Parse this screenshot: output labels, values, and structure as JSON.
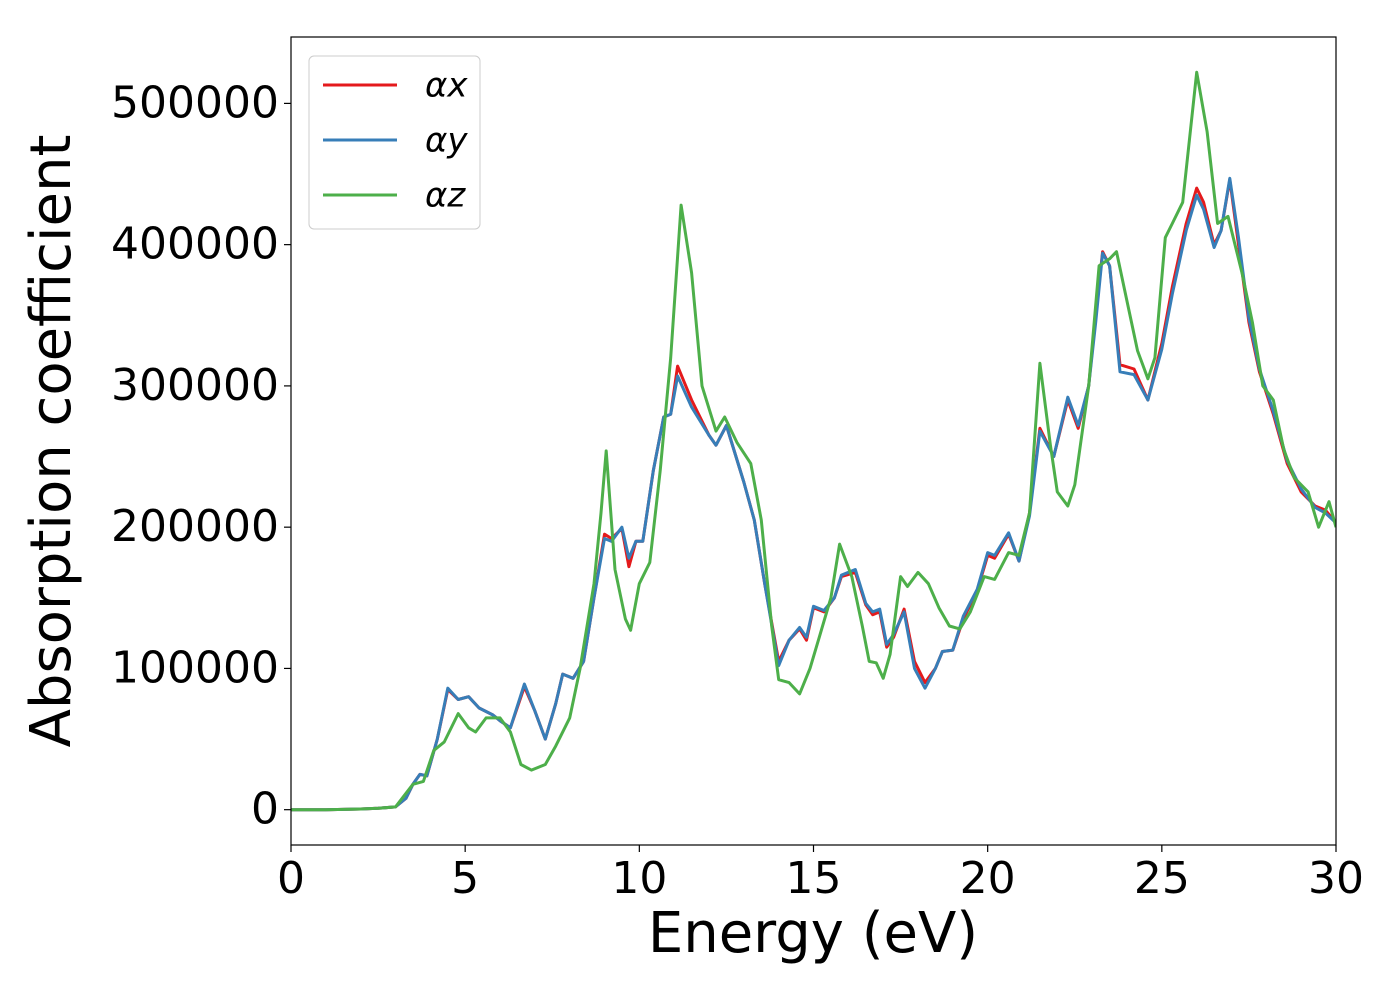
{
  "chart_data": {
    "type": "line",
    "xlabel": "Energy (eV)",
    "ylabel": "Absorption coefficient",
    "xlim": [
      0,
      30
    ],
    "xticks": [
      0,
      5,
      10,
      15,
      20,
      25,
      30
    ],
    "ylim": [
      -25000,
      547000
    ],
    "yticks": [
      0,
      100000,
      200000,
      300000,
      400000,
      500000
    ],
    "legend": "upper left",
    "series": [
      {
        "name": "αx",
        "color": "#e41a1c",
        "x": [
          0,
          1,
          2,
          2.5,
          3,
          3.3,
          3.5,
          3.7,
          3.9,
          4.2,
          4.5,
          4.8,
          5.1,
          5.4,
          5.8,
          6.0,
          6.3,
          6.7,
          7.0,
          7.3,
          7.6,
          7.8,
          8.1,
          8.4,
          8.7,
          9.0,
          9.2,
          9.5,
          9.7,
          9.9,
          10.1,
          10.4,
          10.7,
          10.9,
          11.1,
          11.5,
          12.0,
          12.2,
          12.5,
          13.0,
          13.3,
          13.6,
          14.0,
          14.3,
          14.6,
          14.8,
          15.0,
          15.3,
          15.6,
          15.8,
          16.2,
          16.5,
          16.7,
          16.9,
          17.1,
          17.3,
          17.6,
          17.9,
          18.2,
          18.5,
          18.7,
          19.0,
          19.3,
          19.7,
          20.0,
          20.2,
          20.6,
          20.9,
          21.2,
          21.5,
          21.9,
          22.3,
          22.6,
          22.9,
          23.1,
          23.3,
          23.5,
          23.8,
          24.2,
          24.6,
          25.0,
          25.3,
          25.7,
          26.0,
          26.2,
          26.5,
          26.7,
          26.95,
          27.2,
          27.5,
          27.8,
          28.2,
          28.6,
          29.0,
          29.4,
          29.7,
          30.0
        ],
        "values": [
          0,
          0,
          500,
          1000,
          2000,
          8000,
          18000,
          25000,
          24000,
          50000,
          85000,
          78000,
          80000,
          72000,
          67000,
          63000,
          58000,
          87000,
          70000,
          50000,
          75000,
          96000,
          93000,
          105000,
          150000,
          195000,
          192000,
          199000,
          172000,
          190000,
          190000,
          240000,
          278000,
          280000,
          314000,
          290000,
          265000,
          258000,
          272000,
          232000,
          205000,
          160000,
          105000,
          120000,
          128000,
          120000,
          143000,
          140000,
          150000,
          165000,
          168000,
          145000,
          138000,
          140000,
          115000,
          122000,
          142000,
          105000,
          90000,
          100000,
          112000,
          113000,
          135000,
          155000,
          180000,
          178000,
          195000,
          176000,
          210000,
          270000,
          250000,
          290000,
          270000,
          300000,
          350000,
          395000,
          385000,
          315000,
          312000,
          290000,
          330000,
          370000,
          415000,
          440000,
          430000,
          400000,
          410000,
          446000,
          400000,
          345000,
          310000,
          280000,
          245000,
          225000,
          215000,
          212000,
          203000
        ]
      },
      {
        "name": "αy",
        "color": "#377eb8",
        "x": [
          0,
          1,
          2,
          2.5,
          3,
          3.3,
          3.5,
          3.7,
          3.9,
          4.2,
          4.5,
          4.8,
          5.1,
          5.4,
          5.8,
          6.0,
          6.3,
          6.7,
          7.0,
          7.3,
          7.6,
          7.8,
          8.1,
          8.4,
          8.7,
          9.0,
          9.2,
          9.5,
          9.7,
          9.9,
          10.1,
          10.4,
          10.7,
          10.9,
          11.1,
          11.5,
          12.0,
          12.2,
          12.5,
          13.0,
          13.3,
          13.6,
          14.0,
          14.3,
          14.6,
          14.8,
          15.0,
          15.3,
          15.6,
          15.8,
          16.2,
          16.5,
          16.7,
          16.9,
          17.1,
          17.3,
          17.6,
          17.9,
          18.2,
          18.5,
          18.7,
          19.0,
          19.3,
          19.7,
          20.0,
          20.2,
          20.6,
          20.9,
          21.2,
          21.5,
          21.9,
          22.3,
          22.6,
          22.9,
          23.1,
          23.3,
          23.5,
          23.8,
          24.2,
          24.6,
          25.0,
          25.3,
          25.7,
          26.0,
          26.2,
          26.5,
          26.7,
          26.95,
          27.2,
          27.5,
          27.8,
          28.2,
          28.6,
          29.0,
          29.4,
          29.7,
          30.0
        ],
        "values": [
          0,
          0,
          500,
          1000,
          2000,
          8000,
          18000,
          25000,
          24000,
          50000,
          86000,
          78000,
          80000,
          72000,
          67000,
          63000,
          58000,
          89000,
          70000,
          50000,
          75000,
          96000,
          93000,
          105000,
          150000,
          192000,
          190000,
          200000,
          178000,
          190000,
          190000,
          240000,
          278000,
          280000,
          307000,
          285000,
          265000,
          258000,
          272000,
          232000,
          205000,
          160000,
          102000,
          120000,
          129000,
          122000,
          144000,
          141000,
          150000,
          166000,
          170000,
          146000,
          140000,
          142000,
          117000,
          124000,
          140000,
          100000,
          86000,
          100000,
          112000,
          113000,
          137000,
          156000,
          182000,
          180000,
          196000,
          176000,
          208000,
          268000,
          250000,
          292000,
          272000,
          300000,
          345000,
          394000,
          385000,
          310000,
          308000,
          290000,
          326000,
          365000,
          410000,
          435000,
          425000,
          398000,
          410000,
          447000,
          405000,
          348000,
          312000,
          282000,
          247000,
          227000,
          214000,
          210000,
          203000
        ]
      },
      {
        "name": "αz",
        "color": "#4daf4a",
        "x": [
          0,
          1,
          2,
          2.5,
          3,
          3.5,
          3.8,
          4.1,
          4.4,
          4.8,
          5.1,
          5.3,
          5.6,
          6.0,
          6.3,
          6.6,
          6.9,
          7.3,
          7.6,
          8.0,
          8.3,
          8.7,
          8.9,
          9.05,
          9.3,
          9.6,
          9.75,
          10.0,
          10.3,
          10.6,
          10.9,
          11.2,
          11.5,
          11.8,
          12.2,
          12.45,
          12.8,
          13.2,
          13.5,
          13.8,
          14.0,
          14.3,
          14.6,
          14.9,
          15.2,
          15.5,
          15.75,
          16.1,
          16.4,
          16.6,
          16.8,
          17.0,
          17.2,
          17.5,
          17.7,
          18.0,
          18.3,
          18.6,
          18.9,
          19.2,
          19.5,
          19.9,
          20.2,
          20.6,
          20.9,
          21.2,
          21.5,
          21.8,
          22.0,
          22.3,
          22.5,
          22.9,
          23.2,
          23.5,
          23.7,
          24.0,
          24.3,
          24.6,
          24.8,
          25.1,
          25.3,
          25.6,
          26.0,
          26.3,
          26.6,
          26.9,
          27.3,
          27.6,
          27.9,
          28.2,
          28.5,
          28.8,
          29.2,
          29.5,
          29.8,
          30.0
        ],
        "values": [
          0,
          0,
          500,
          1000,
          2000,
          18000,
          20000,
          42000,
          48000,
          68000,
          58000,
          55000,
          65000,
          65000,
          55000,
          32000,
          28000,
          32000,
          45000,
          65000,
          100000,
          160000,
          210000,
          254000,
          170000,
          135000,
          127000,
          160000,
          175000,
          240000,
          320000,
          428000,
          380000,
          300000,
          268000,
          278000,
          260000,
          245000,
          205000,
          130000,
          92000,
          90000,
          82000,
          100000,
          125000,
          150000,
          188000,
          165000,
          130000,
          105000,
          104000,
          93000,
          110000,
          165000,
          158000,
          168000,
          160000,
          143000,
          130000,
          128000,
          140000,
          165000,
          163000,
          182000,
          180000,
          210000,
          316000,
          258000,
          225000,
          215000,
          230000,
          300000,
          385000,
          390000,
          395000,
          360000,
          325000,
          305000,
          320000,
          405000,
          415000,
          430000,
          522000,
          480000,
          415000,
          420000,
          380000,
          345000,
          300000,
          290000,
          255000,
          235000,
          225000,
          200000,
          218000,
          200000
        ]
      }
    ]
  }
}
